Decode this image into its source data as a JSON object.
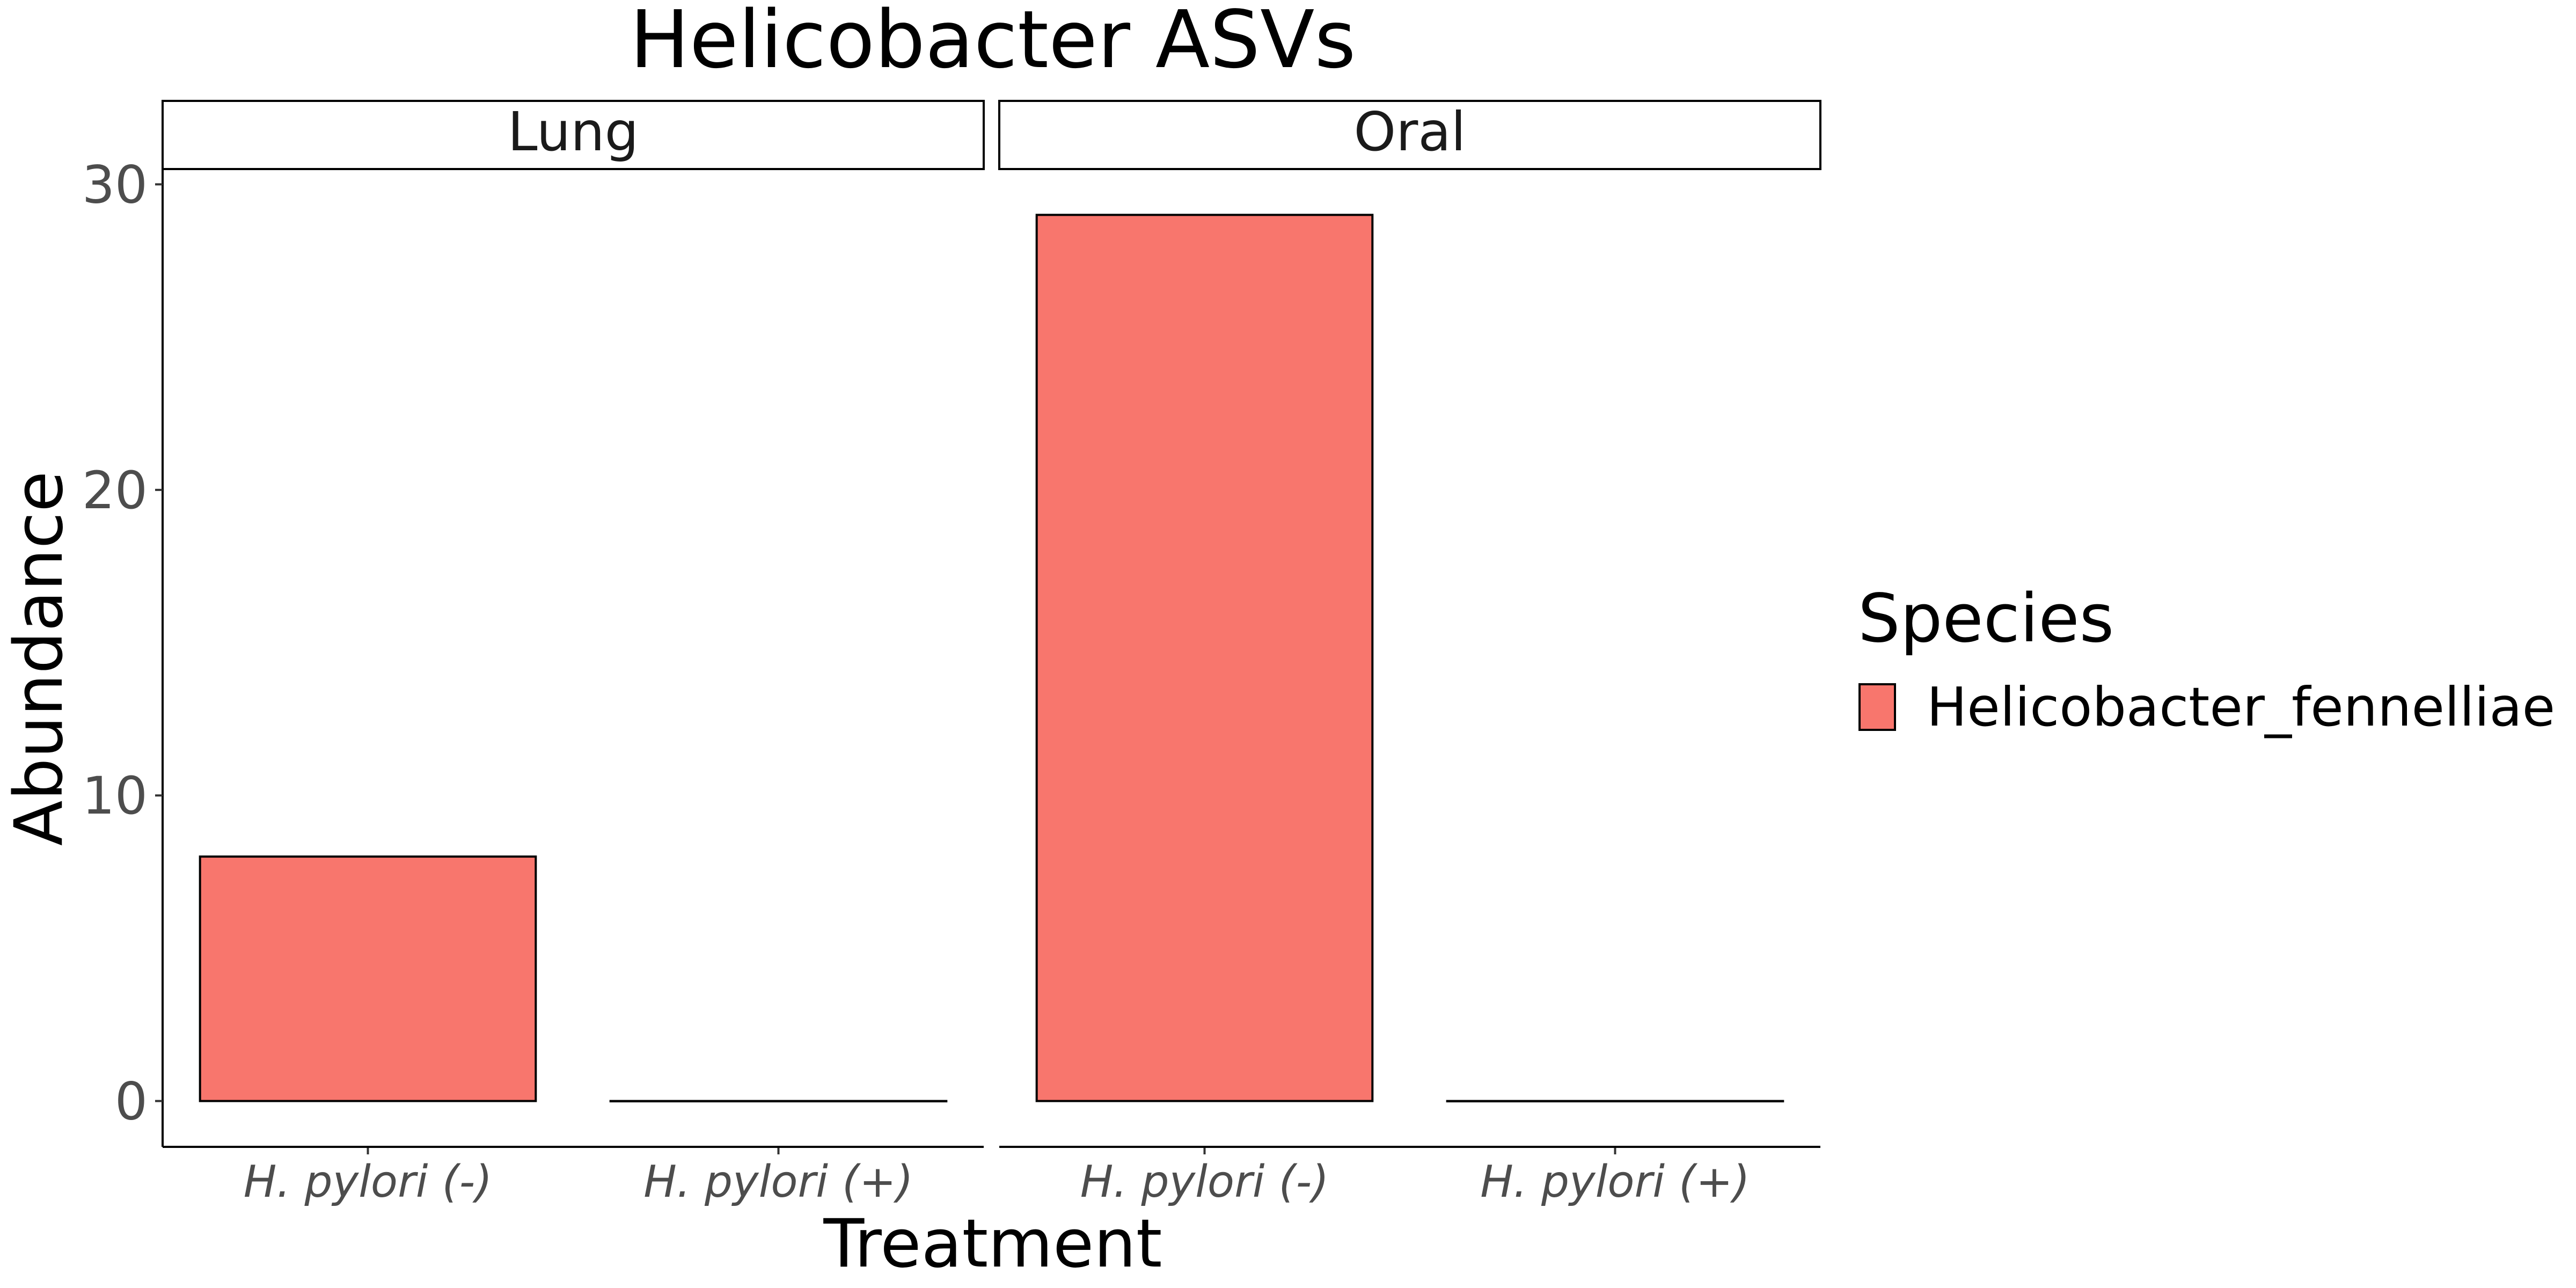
{
  "chart_data": {
    "type": "bar",
    "title": "Helicobacter ASVs",
    "xlabel": "Treatment",
    "ylabel": "Abundance",
    "ylim": [
      -1.5,
      30.5
    ],
    "yticks": [
      0,
      10,
      20,
      30
    ],
    "categories": [
      "H. pylori (-)",
      "H. pylori (+)"
    ],
    "facets": [
      {
        "label": "Lung",
        "values": [
          8,
          0
        ]
      },
      {
        "label": "Oral",
        "values": [
          29,
          0
        ]
      }
    ],
    "series": [
      {
        "name": "Helicobacter_fennelliae",
        "color": "#F8766D"
      }
    ],
    "legend": {
      "title": "Species",
      "placement": "right"
    },
    "grid": false
  }
}
